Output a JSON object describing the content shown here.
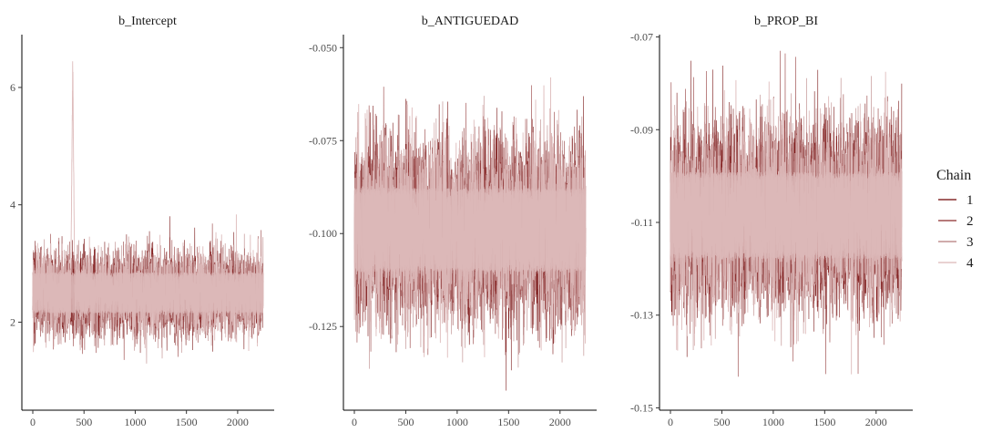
{
  "legend": {
    "title": "Chain",
    "entries": [
      {
        "label": "1",
        "color": "#6e0000"
      },
      {
        "label": "2",
        "color": "#8b2a2a"
      },
      {
        "label": "3",
        "color": "#b47a7a"
      },
      {
        "label": "4",
        "color": "#dcb8b8"
      }
    ]
  },
  "chart_data": [
    {
      "type": "line",
      "title": "b_Intercept",
      "xlim": [
        0,
        2250
      ],
      "ylim": [
        0.5,
        6.9
      ],
      "x_ticks": [
        0,
        500,
        1000,
        1500,
        2000
      ],
      "x_tick_labels": [
        "0",
        "500",
        "1000",
        "1500",
        "2000"
      ],
      "y_ticks": [
        2,
        4,
        6
      ],
      "y_tick_labels": [
        "2",
        "4",
        "6"
      ],
      "grid": false,
      "iterations": 2250,
      "center": 2.5,
      "band_half_width": 0.28,
      "noise_sd": 0.33,
      "min": 0.55,
      "max": 6.75,
      "spike": {
        "x_start": 370,
        "x_end": 410,
        "peak": 6.7,
        "chain": "4"
      },
      "series": [
        {
          "name": "1",
          "color": "#6e0000"
        },
        {
          "name": "2",
          "color": "#8b2a2a"
        },
        {
          "name": "3",
          "color": "#b47a7a"
        },
        {
          "name": "4",
          "color": "#dcb8b8"
        }
      ]
    },
    {
      "type": "line",
      "title": "b_ANTIGUEDAD",
      "xlim": [
        0,
        2250
      ],
      "ylim": [
        -0.1475,
        -0.0465
      ],
      "x_ticks": [
        0,
        500,
        1000,
        1500,
        2000
      ],
      "x_tick_labels": [
        "0",
        "500",
        "1000",
        "1500",
        "2000"
      ],
      "y_ticks": [
        -0.125,
        -0.1,
        -0.075,
        -0.05
      ],
      "y_tick_labels": [
        "-0.125",
        "-0.100",
        "-0.075",
        "-0.050"
      ],
      "grid": false,
      "iterations": 2250,
      "center": -0.099,
      "band_half_width": 0.009,
      "noise_sd": 0.0115,
      "min": -0.145,
      "max": -0.052,
      "spike": null,
      "series": [
        {
          "name": "1",
          "color": "#6e0000"
        },
        {
          "name": "2",
          "color": "#8b2a2a"
        },
        {
          "name": "3",
          "color": "#b47a7a"
        },
        {
          "name": "4",
          "color": "#dcb8b8"
        }
      ]
    },
    {
      "type": "line",
      "title": "b_PROP_BI",
      "xlim": [
        0,
        2250
      ],
      "ylim": [
        -0.1505,
        -0.0695
      ],
      "x_ticks": [
        0,
        500,
        1000,
        1500,
        2000
      ],
      "x_tick_labels": [
        "0",
        "500",
        "1000",
        "1500",
        "2000"
      ],
      "y_ticks": [
        -0.15,
        -0.13,
        -0.11,
        -0.09,
        -0.07
      ],
      "y_tick_labels": [
        "-0.15",
        "-0.13",
        "-0.11",
        "-0.09",
        "-0.07"
      ],
      "grid": false,
      "iterations": 2250,
      "center": -0.1085,
      "band_half_width": 0.0075,
      "noise_sd": 0.0095,
      "min": -0.148,
      "max": -0.073,
      "spike": null,
      "series": [
        {
          "name": "1",
          "color": "#6e0000"
        },
        {
          "name": "2",
          "color": "#8b2a2a"
        },
        {
          "name": "3",
          "color": "#b47a7a"
        },
        {
          "name": "4",
          "color": "#dcb8b8"
        }
      ]
    }
  ]
}
